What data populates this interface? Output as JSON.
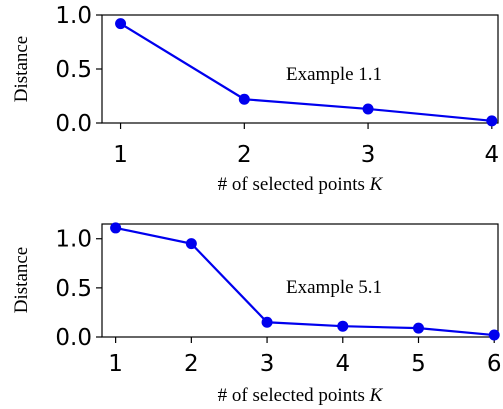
{
  "chart_data": [
    {
      "type": "line",
      "x": [
        1,
        2,
        3,
        4
      ],
      "series": [
        {
          "values": [
            0.92,
            0.22,
            0.13,
            0.02
          ]
        }
      ],
      "xlabel": "# of selected points",
      "xlabel_var": "K",
      "ylabel": "Distance",
      "xlim": [
        0.85,
        4.05
      ],
      "ylim": [
        0,
        1.0
      ],
      "xticks": [
        1,
        2,
        3,
        4
      ],
      "yticks": [
        0.0,
        0.5,
        1.0
      ],
      "ytick_labels": [
        "0.0",
        "0.5",
        "1.0"
      ],
      "annotation": "Example 1.1",
      "grid": false,
      "color": "#0000ee"
    },
    {
      "type": "line",
      "x": [
        1,
        2,
        3,
        4,
        5,
        6
      ],
      "series": [
        {
          "values": [
            1.11,
            0.95,
            0.15,
            0.11,
            0.09,
            0.02
          ]
        }
      ],
      "xlabel": "# of selected points",
      "xlabel_var": "K",
      "ylabel": "Distance",
      "xlim": [
        0.82,
        6.05
      ],
      "ylim": [
        0,
        1.15
      ],
      "xticks": [
        1,
        2,
        3,
        4,
        5,
        6
      ],
      "yticks": [
        0.0,
        0.5,
        1.0
      ],
      "ytick_labels": [
        "0.0",
        "0.5",
        "1.0"
      ],
      "annotation": "Example 5.1",
      "grid": false,
      "color": "#0000ee"
    }
  ]
}
